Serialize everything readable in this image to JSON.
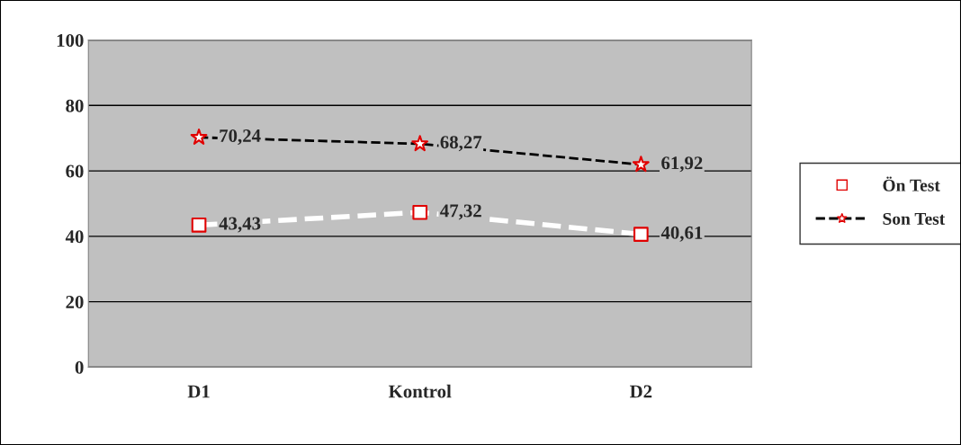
{
  "chart_data": {
    "type": "line",
    "categories": [
      "D1",
      "Kontrol",
      "D2"
    ],
    "series": [
      {
        "name": "Ön Test",
        "color": "#ffffff",
        "marker": "square",
        "values": [
          43.43,
          47.32,
          40.61
        ],
        "value_labels": [
          "43,43",
          "47,32",
          "40,61"
        ]
      },
      {
        "name": "Son Test",
        "color": "#000000",
        "marker": "star",
        "values": [
          70.24,
          68.27,
          61.92
        ],
        "value_labels": [
          "70,24",
          "68,27",
          "61,92"
        ]
      }
    ],
    "ylim": [
      0,
      100
    ],
    "yticks": [
      0,
      20,
      40,
      60,
      80,
      100
    ],
    "grid": "y",
    "legend": "right",
    "line_style": "dashed"
  }
}
